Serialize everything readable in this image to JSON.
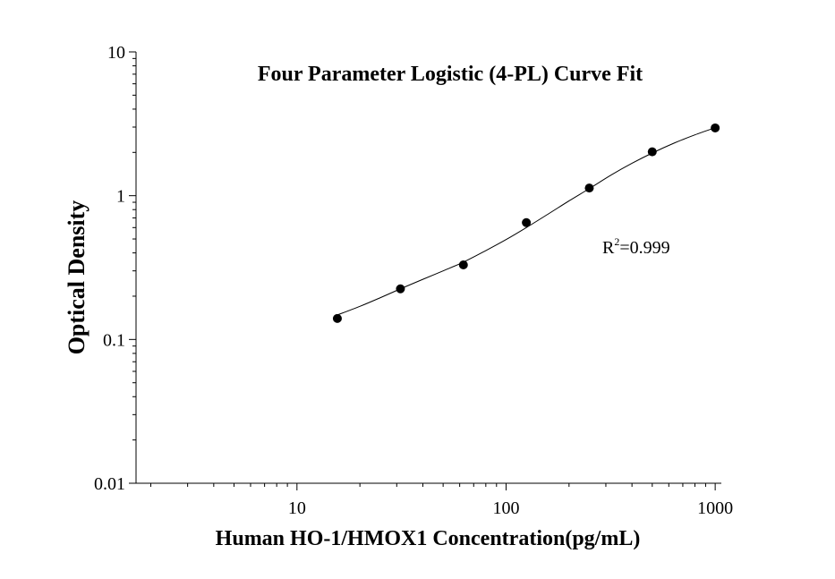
{
  "chart_data": {
    "type": "scatter",
    "title": "Four Parameter Logistic (4-PL) Curve Fit",
    "xlabel": "Human HO-1/HMOX1 Concentration(pg/mL)",
    "ylabel": "Optical Density",
    "x_scale": "log",
    "y_scale": "log",
    "xlim": [
      1.7,
      1070
    ],
    "ylim": [
      0.01,
      10
    ],
    "x_ticks": [
      10,
      100,
      1000
    ],
    "x_tick_labels": [
      "10",
      "100",
      "1000"
    ],
    "y_ticks": [
      0.01,
      0.1,
      1,
      10
    ],
    "y_tick_labels": [
      "0.01",
      "0.1",
      "1",
      "10"
    ],
    "grid": false,
    "series": [
      {
        "x": [
          15.6,
          31.25,
          62.5,
          125,
          250,
          500,
          1000
        ],
        "y": [
          0.14,
          0.225,
          0.33,
          0.65,
          1.13,
          2.02,
          2.96
        ]
      }
    ],
    "fit_curve": {
      "type": "4-PL",
      "x": [
        15.6,
        20,
        25,
        31.25,
        40,
        50,
        62.5,
        80,
        100,
        125,
        160,
        200,
        250,
        320,
        400,
        500,
        640,
        800,
        1000
      ],
      "y": [
        0.148,
        0.17,
        0.195,
        0.225,
        0.262,
        0.3,
        0.345,
        0.415,
        0.495,
        0.6,
        0.75,
        0.92,
        1.12,
        1.4,
        1.68,
        1.98,
        2.33,
        2.65,
        2.97
      ]
    },
    "annotation": {
      "base": "R",
      "sup": "2",
      "rest": "=0.999"
    }
  }
}
